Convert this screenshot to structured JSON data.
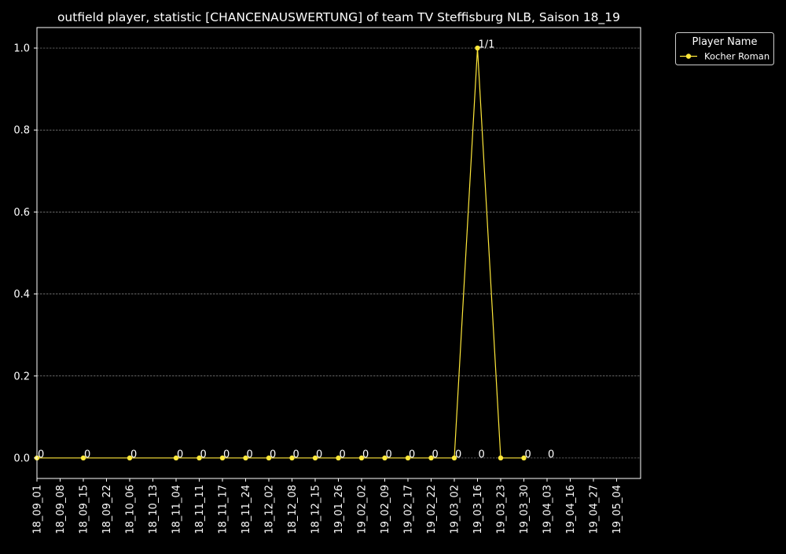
{
  "chart_data": {
    "type": "line",
    "title": "outfield player, statistic [CHANCENAUSWERTUNG] of team TV Steffisburg NLB, Saison 18_19",
    "xlabel": "",
    "ylabel": "",
    "categories": [
      "18_09_01",
      "18_09_08",
      "18_09_15",
      "18_09_22",
      "18_10_06",
      "18_10_13",
      "18_11_04",
      "18_11_11",
      "18_11_17",
      "18_11_24",
      "18_12_02",
      "18_12_08",
      "18_12_15",
      "19_01_26",
      "19_02_02",
      "19_02_09",
      "19_02_17",
      "19_02_22",
      "19_03_02",
      "19_03_16",
      "19_03_23",
      "19_03_30",
      "19_04_03",
      "19_04_16",
      "19_04_27",
      "19_05_04"
    ],
    "ylim": [
      -0.05,
      1.05
    ],
    "yticks": [
      "0.0",
      "0.2",
      "0.4",
      "0.6",
      "0.8",
      "1.0"
    ],
    "grid": true,
    "legend": {
      "title": "Player Name",
      "placement": "top-right outside"
    },
    "series": [
      {
        "name": "Kocher Roman",
        "color": "#FFE83A",
        "points": [
          {
            "x": "18_09_01",
            "y": 0
          },
          {
            "x": "18_09_15",
            "y": 0
          },
          {
            "x": "18_10_06",
            "y": 0
          },
          {
            "x": "18_11_04",
            "y": 0
          },
          {
            "x": "18_11_11",
            "y": 0
          },
          {
            "x": "18_11_17",
            "y": 0
          },
          {
            "x": "18_11_24",
            "y": 0
          },
          {
            "x": "18_12_02",
            "y": 0
          },
          {
            "x": "18_12_08",
            "y": 0
          },
          {
            "x": "18_12_15",
            "y": 0
          },
          {
            "x": "19_01_26",
            "y": 0
          },
          {
            "x": "19_02_02",
            "y": 0
          },
          {
            "x": "19_02_09",
            "y": 0
          },
          {
            "x": "19_02_17",
            "y": 0
          },
          {
            "x": "19_02_22",
            "y": 0
          },
          {
            "x": "19_03_02",
            "y": 0
          },
          {
            "x": "19_03_16",
            "y": 1
          },
          {
            "x": "19_03_23",
            "y": 0
          },
          {
            "x": "19_03_30",
            "y": 0
          }
        ]
      }
    ],
    "annotations": [
      {
        "x": "18_09_01",
        "y": 0,
        "text": "0"
      },
      {
        "x": "18_09_15",
        "y": 0,
        "text": "0"
      },
      {
        "x": "18_10_06",
        "y": 0,
        "text": "0"
      },
      {
        "x": "18_11_04",
        "y": 0,
        "text": "0"
      },
      {
        "x": "18_11_11",
        "y": 0,
        "text": "0"
      },
      {
        "x": "18_11_17",
        "y": 0,
        "text": "0"
      },
      {
        "x": "18_11_24",
        "y": 0,
        "text": "0"
      },
      {
        "x": "18_12_02",
        "y": 0,
        "text": "0"
      },
      {
        "x": "18_12_08",
        "y": 0,
        "text": "0"
      },
      {
        "x": "18_12_15",
        "y": 0,
        "text": "0"
      },
      {
        "x": "19_01_26",
        "y": 0,
        "text": "0"
      },
      {
        "x": "19_02_02",
        "y": 0,
        "text": "0"
      },
      {
        "x": "19_02_09",
        "y": 0,
        "text": "0"
      },
      {
        "x": "19_02_17",
        "y": 0,
        "text": "0"
      },
      {
        "x": "19_02_22",
        "y": 0,
        "text": "0"
      },
      {
        "x": "19_03_02",
        "y": 0,
        "text": "0"
      },
      {
        "x": "19_03_16",
        "y": 0,
        "text": "0"
      },
      {
        "x": "19_03_16",
        "y": 1,
        "text": "1/1"
      },
      {
        "x": "19_03_30",
        "y": 0,
        "text": "0"
      },
      {
        "x": "19_04_03",
        "y": 0,
        "text": "0"
      }
    ]
  }
}
